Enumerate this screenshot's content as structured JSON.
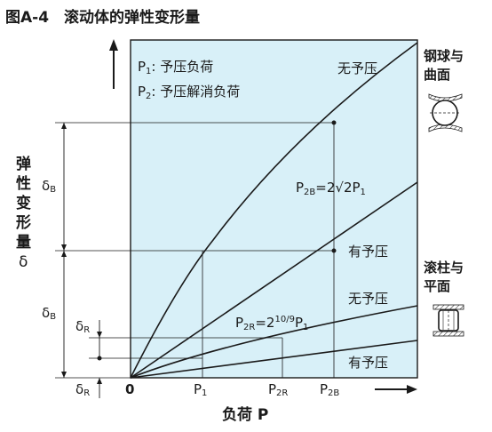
{
  "title": "图A-4　滚动体的弹性变形量",
  "legend": {
    "p1_symbol": "P",
    "p1_sub": "1",
    "p1_text": ": 予压负荷",
    "p2_symbol": "P",
    "p2_sub": "2",
    "p2_text": ": 予压解消负荷"
  },
  "curve_labels": {
    "ball_no_preload": "无予压",
    "ball_preload": "有予压",
    "roller_no_preload": "无予压",
    "roller_preload": "有予压"
  },
  "formula_ball": {
    "main": "P",
    "sub": "2B",
    "rest": "=2√2P",
    "sub2": "1"
  },
  "formula_roller": {
    "main": "P",
    "sub": "2R",
    "mid": "=2",
    "sup": "10/9",
    "end": "P",
    "sub2": "1"
  },
  "right_labels": {
    "ball_line1": "钢球与",
    "ball_line2": "曲面",
    "roller_line1": "滚柱与",
    "roller_line2": "平面"
  },
  "y_axis_label": [
    "弹",
    "性",
    "变",
    "形",
    "量",
    "δ"
  ],
  "delta_labels": {
    "delta_b_upper": "δ",
    "delta_b_upper_sub": "B",
    "delta_b_lower": "δ",
    "delta_b_lower_sub": "B",
    "delta_r_upper": "δ",
    "delta_r_upper_sub": "R",
    "delta_r_lower": "δ",
    "delta_r_lower_sub": "R"
  },
  "x_ticks": {
    "origin": "0",
    "p1": "P",
    "p1_sub": "1",
    "p2r": "P",
    "p2r_sub": "2R",
    "p2b": "P",
    "p2b_sub": "2B"
  },
  "x_axis_label": "负荷  P",
  "colors": {
    "panel": "#d8f0f8",
    "line": "#1a1a1a"
  }
}
